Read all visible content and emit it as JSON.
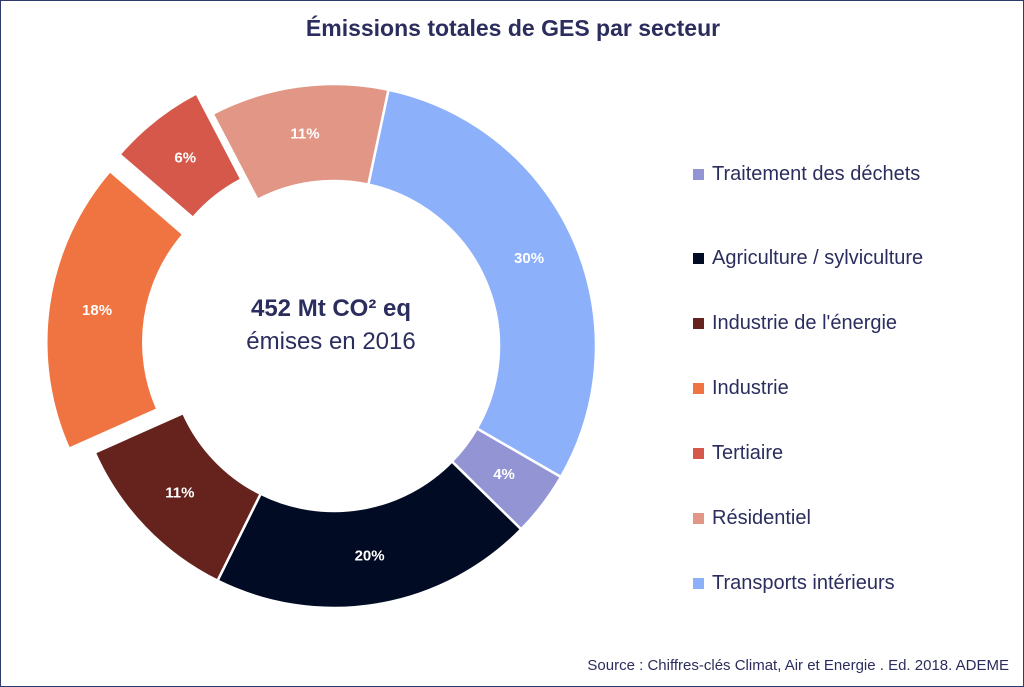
{
  "chart_data": {
    "type": "pie",
    "title": "Émissions totales de GES par secteur",
    "center_label": {
      "value": "452 Mt CO² eq",
      "caption": "émises en 2016"
    },
    "slices": [
      {
        "category": "Transports intérieurs",
        "value": 30,
        "label": "30%",
        "color": "#8cb0fa",
        "exploded": false
      },
      {
        "category": "Traitement des déchets",
        "value": 4,
        "label": "4%",
        "color": "#9294d4",
        "exploded": false
      },
      {
        "category": "Agriculture / sylviculture",
        "value": 20,
        "label": "20%",
        "color": "#020b24",
        "exploded": false
      },
      {
        "category": "Industrie de l'énergie",
        "value": 11,
        "label": "11%",
        "color": "#66221c",
        "exploded": false
      },
      {
        "category": "Industrie",
        "value": 18,
        "label": "18%",
        "color": "#ef7441",
        "exploded": true
      },
      {
        "category": "Tertiaire",
        "value": 6,
        "label": "6%",
        "color": "#d5584a",
        "exploded": true
      },
      {
        "category": "Résidentiel",
        "value": 11,
        "label": "11%",
        "color": "#e29686",
        "exploded": false
      }
    ],
    "legend": {
      "position": "right",
      "items": [
        {
          "label": "Traitement des déchets",
          "color": "#9294d4"
        },
        {
          "label": "Agriculture / sylviculture",
          "color": "#020b24"
        },
        {
          "label": "Industrie de l'énergie",
          "color": "#66221c"
        },
        {
          "label": "Industrie",
          "color": "#ef7441"
        },
        {
          "label": "Tertiaire",
          "color": "#d5584a"
        },
        {
          "label": "Résidentiel",
          "color": "#e29686"
        },
        {
          "label": "Transports intérieurs",
          "color": "#8cb0fa"
        }
      ]
    },
    "source": "Source : Chiffres-clés Climat, Air et Energie . Ed. 2018. ADEME"
  }
}
